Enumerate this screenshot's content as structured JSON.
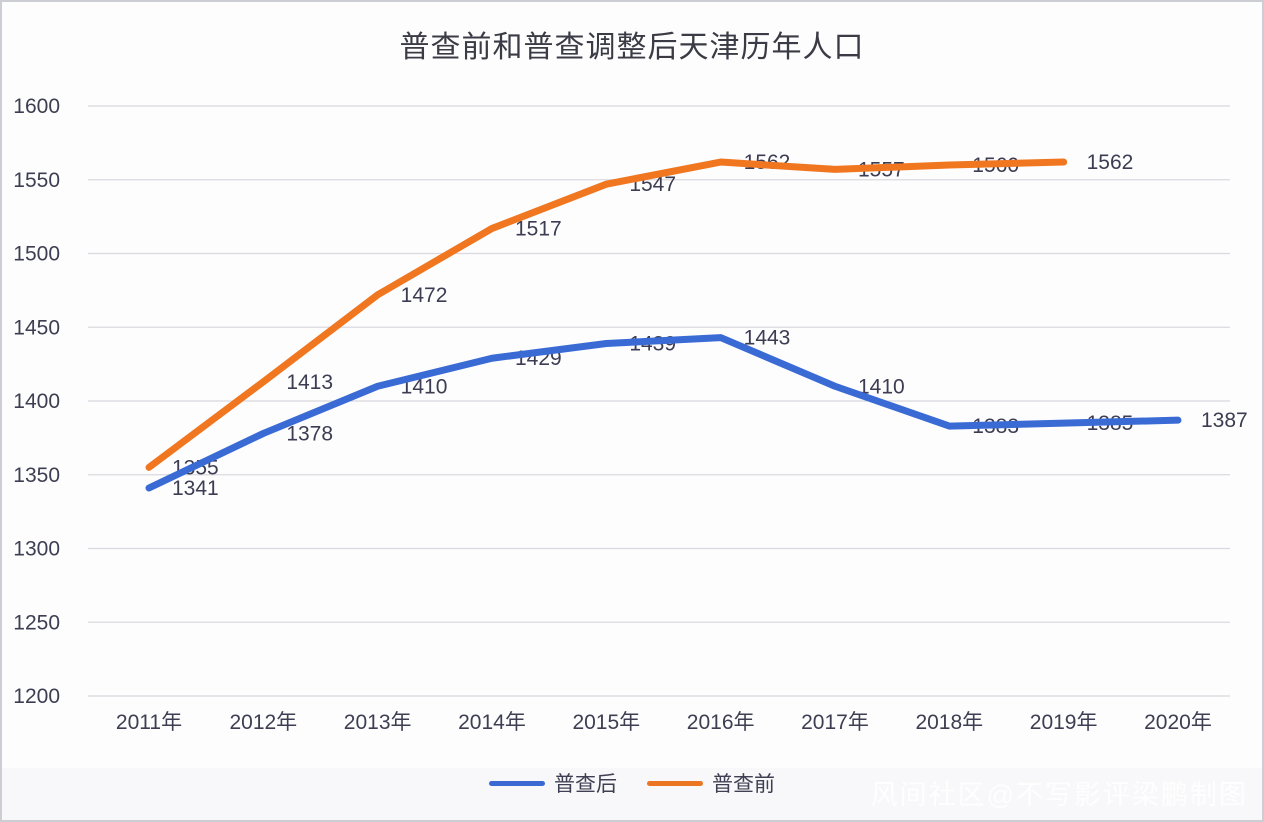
{
  "title": "普查前和普查调整后天津历年人口",
  "watermark": "风间社区@不写影评梁鹏制图",
  "colors": {
    "series_after": "#3a6bd5",
    "series_before": "#f0761f",
    "grid": "#d9d9df",
    "axis_text": "#3e3e52",
    "label_text": "#3c3c52",
    "title_text": "#3b3b45"
  },
  "legend": [
    {
      "label": "普查后",
      "color": "#3a6bd5"
    },
    {
      "label": "普查前",
      "color": "#f0761f"
    }
  ],
  "chart_data": {
    "type": "line",
    "title": "普查前和普查调整后天津历年人口",
    "categories": [
      "2011年",
      "2012年",
      "2013年",
      "2014年",
      "2015年",
      "2016年",
      "2017年",
      "2018年",
      "2019年",
      "2020年"
    ],
    "y_ticks": [
      1200,
      1250,
      1300,
      1350,
      1400,
      1450,
      1500,
      1550,
      1600
    ],
    "ylim": [
      1200,
      1600
    ],
    "xlabel": "",
    "ylabel": "",
    "grid": "horizontal",
    "legend_position": "bottom",
    "data_labels": true,
    "series": [
      {
        "name": "普查后",
        "color": "#3a6bd5",
        "values": [
          1341,
          1378,
          1410,
          1429,
          1439,
          1443,
          1410,
          1383,
          1385,
          1387
        ]
      },
      {
        "name": "普查前",
        "color": "#f0761f",
        "values": [
          1355,
          1413,
          1472,
          1517,
          1547,
          1562,
          1557,
          1560,
          1562
        ]
      }
    ]
  }
}
